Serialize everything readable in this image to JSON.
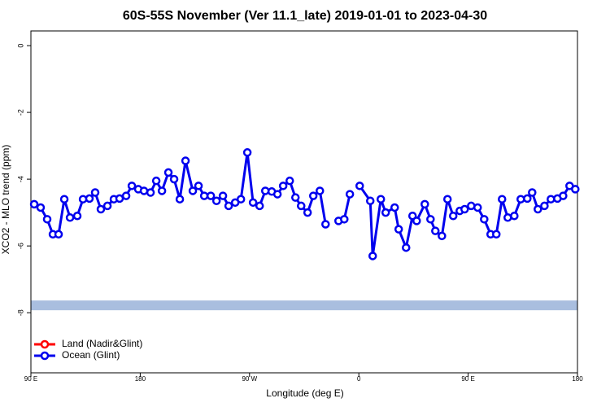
{
  "chart_data": {
    "type": "line",
    "title": "60S-55S November (Ver 11.1_late)   2019-01-01 to 2023-04-30",
    "xlabel": "Longitude (deg E)",
    "ylabel": "XCO2 - MLO trend (ppm)",
    "xlim": [
      90,
      540
    ],
    "xticks": [
      {
        "value": 90,
        "label": "90 E"
      },
      180,
      {
        "value": 270,
        "label": "90 W"
      },
      {
        "value": 360,
        "label": "0"
      },
      {
        "value": 450,
        "label": "90 E"
      },
      {
        "value": 540,
        "label": "180"
      }
    ],
    "ylim": [
      -9.8,
      0.44
    ],
    "yticks": [
      0,
      -2,
      -4,
      -6,
      -8
    ],
    "reference_band": {
      "value": -7.78,
      "color": "#a9bedf"
    },
    "legend": "bottom-left",
    "series": [
      {
        "name": "Land (Nadir&Glint)",
        "color": "#ff0000",
        "x": [],
        "values": []
      },
      {
        "name": "Ocean (Glint)",
        "color": "#0000ee",
        "x": [
          92.7,
          98.0,
          103.4,
          108.1,
          112.8,
          117.5,
          122.2,
          128.2,
          132.9,
          138.2,
          142.9,
          147.6,
          153.0,
          158.3,
          163.0,
          168.4,
          173.1,
          178.4,
          183.1,
          188.5,
          193.2,
          197.9,
          203.2,
          207.9,
          212.6,
          217.3,
          223.3,
          228.0,
          232.7,
          238.1,
          242.8,
          248.1,
          252.8,
          258.2,
          262.9,
          268.2,
          272.9,
          278.3,
          283.0,
          288.3,
          293.0,
          297.7,
          303.1,
          307.8,
          312.5,
          317.8,
          322.5,
          327.9,
          332.6,
          337.0,
          343.3,
          348.0,
          352.6,
          356.0,
          360.7,
          369.4,
          371.4,
          378.1,
          382.1,
          389.5,
          392.8,
          398.9,
          404.2,
          407.6,
          414.3,
          419.0,
          423.0,
          428.4,
          433.0,
          437.7,
          443.1,
          447.1,
          452.5,
          457.8,
          463.2,
          468.5,
          473.2,
          477.9,
          482.6,
          488.0,
          493.3,
          498.7,
          502.7,
          507.4,
          512.8,
          518.1,
          523.5,
          528.2,
          533.5,
          538.2
        ],
        "values": [
          -4.75,
          -4.85,
          -5.2,
          -5.65,
          -5.65,
          -4.6,
          -5.15,
          -5.1,
          -4.6,
          -4.58,
          -4.4,
          -4.9,
          -4.8,
          -4.6,
          -4.58,
          -4.5,
          -4.2,
          -4.3,
          -4.35,
          -4.4,
          -4.05,
          -4.35,
          -3.8,
          -4.0,
          -4.6,
          -3.45,
          -4.35,
          -4.2,
          -4.5,
          -4.5,
          -4.65,
          -4.5,
          -4.8,
          -4.7,
          -4.6,
          -3.2,
          -4.7,
          -4.8,
          -4.35,
          -4.37,
          -4.45,
          -4.2,
          -4.05,
          -4.55,
          -4.8,
          -5.0,
          -4.5,
          -4.35,
          -5.35,
          null,
          -5.25,
          -5.2,
          -4.45,
          null,
          -4.2,
          -4.65,
          -6.3,
          -4.6,
          -5.0,
          -4.85,
          -5.5,
          -6.05,
          -5.1,
          -5.25,
          -4.75,
          -5.2,
          -5.55,
          -5.7,
          -4.6,
          -5.1,
          -4.95,
          -4.9,
          -4.8,
          -4.85,
          -5.2,
          -5.65,
          -5.65,
          -4.6,
          -5.15,
          -5.1,
          -4.6,
          -4.58,
          -4.4,
          -4.9,
          -4.8,
          -4.6,
          -4.58,
          -4.5,
          -4.2,
          -4.3
        ]
      }
    ]
  }
}
